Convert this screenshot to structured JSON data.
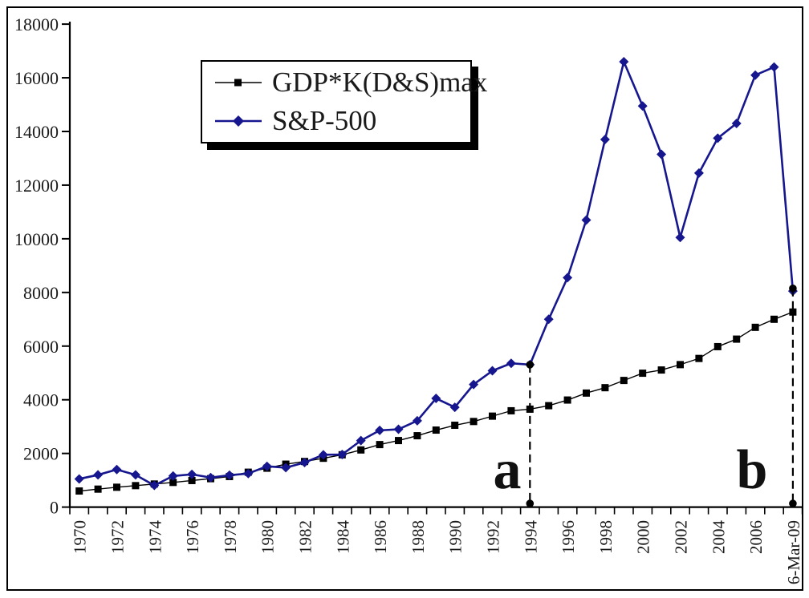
{
  "chart_data": {
    "type": "line",
    "title": "",
    "background": "#ffffff",
    "axis_color": "#000000",
    "text_color": "#1a1a1a",
    "grid": false,
    "legend_position": "top-left-inside",
    "ylim": [
      0,
      18000
    ],
    "y_ticks": [
      0,
      2000,
      4000,
      6000,
      8000,
      10000,
      12000,
      14000,
      16000,
      18000
    ],
    "x_labels_every": 2,
    "categories": [
      "1970",
      "1971",
      "1972",
      "1973",
      "1974",
      "1975",
      "1976",
      "1977",
      "1978",
      "1979",
      "1980",
      "1981",
      "1982",
      "1983",
      "1984",
      "1985",
      "1986",
      "1987",
      "1988",
      "1989",
      "1990",
      "1991",
      "1992",
      "1993",
      "1994",
      "1995",
      "1996",
      "1997",
      "1998",
      "1999",
      "2000",
      "2001",
      "2002",
      "2003",
      "2004",
      "2005",
      "2006",
      "2007",
      "6-Mar-09"
    ],
    "series": [
      {
        "name": "GDP*K(D&S)max",
        "color": "#000000",
        "marker": "square",
        "values": [
          600,
          670,
          740,
          800,
          860,
          920,
          990,
          1060,
          1140,
          1300,
          1450,
          1600,
          1700,
          1820,
          1950,
          2130,
          2330,
          2480,
          2660,
          2870,
          3050,
          3190,
          3390,
          3590,
          3650,
          3780,
          3990,
          4250,
          4450,
          4720,
          4990,
          5110,
          5310,
          5540,
          5980,
          6260,
          6700,
          7000,
          7270
        ]
      },
      {
        "name": "S&P-500",
        "color": "#16168e",
        "marker": "diamond",
        "values": [
          1050,
          1200,
          1400,
          1200,
          810,
          1160,
          1220,
          1100,
          1190,
          1250,
          1520,
          1470,
          1660,
          1950,
          1960,
          2480,
          2860,
          2900,
          3220,
          4050,
          3720,
          4570,
          5080,
          5360,
          5310,
          7000,
          8550,
          10700,
          13700,
          16600,
          14950,
          13150,
          10050,
          12450,
          13750,
          14300,
          16100,
          16400,
          8050
        ]
      }
    ],
    "annotations": [
      {
        "label": "a",
        "category": "1994",
        "value": 5310
      },
      {
        "label": "b",
        "category": "6-Mar-09",
        "value": 8150
      }
    ]
  }
}
